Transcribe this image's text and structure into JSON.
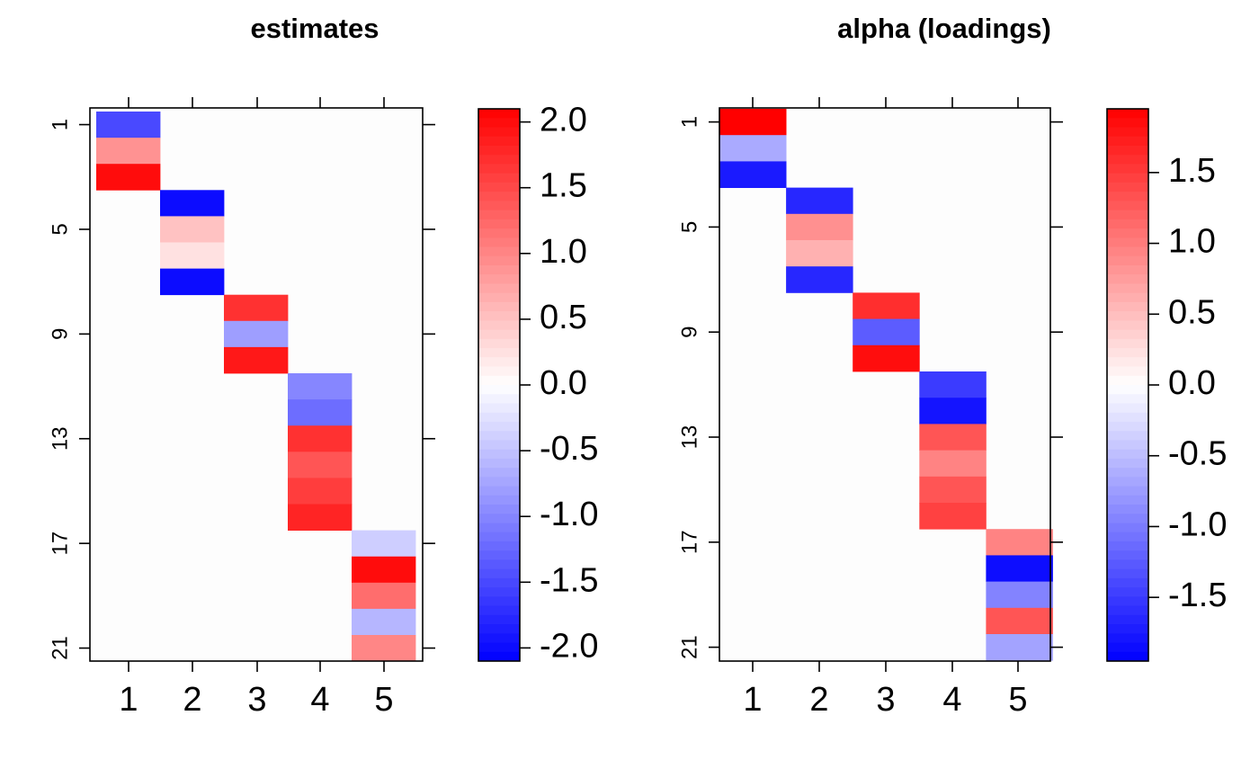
{
  "chart_data": [
    {
      "type": "heatmap",
      "title": "estimates",
      "x_tick_labels": [
        "1",
        "2",
        "3",
        "4",
        "5"
      ],
      "y_tick_labels": [
        "1",
        "5",
        "9",
        "13",
        "17",
        "21"
      ],
      "rows": 21,
      "cols": 5,
      "cells": [
        {
          "row": 1,
          "col": 1,
          "value": -1.5
        },
        {
          "row": 2,
          "col": 1,
          "value": 0.9
        },
        {
          "row": 3,
          "col": 1,
          "value": 2.0
        },
        {
          "row": 4,
          "col": 2,
          "value": -2.0
        },
        {
          "row": 5,
          "col": 2,
          "value": 0.5
        },
        {
          "row": 6,
          "col": 2,
          "value": 0.25
        },
        {
          "row": 7,
          "col": 2,
          "value": -2.0
        },
        {
          "row": 8,
          "col": 3,
          "value": 1.7
        },
        {
          "row": 9,
          "col": 3,
          "value": -0.8
        },
        {
          "row": 10,
          "col": 3,
          "value": 1.9
        },
        {
          "row": 11,
          "col": 4,
          "value": -1.0
        },
        {
          "row": 12,
          "col": 4,
          "value": -1.2
        },
        {
          "row": 13,
          "col": 4,
          "value": 1.7
        },
        {
          "row": 14,
          "col": 4,
          "value": 1.4
        },
        {
          "row": 15,
          "col": 4,
          "value": 1.6
        },
        {
          "row": 16,
          "col": 4,
          "value": 1.8
        },
        {
          "row": 17,
          "col": 5,
          "value": -0.4
        },
        {
          "row": 18,
          "col": 5,
          "value": 2.0
        },
        {
          "row": 19,
          "col": 5,
          "value": 1.2
        },
        {
          "row": 20,
          "col": 5,
          "value": -0.6
        },
        {
          "row": 21,
          "col": 5,
          "value": 1.0
        }
      ],
      "colorbar": {
        "min": -2.1,
        "max": 2.1,
        "ticks": [
          2.0,
          1.5,
          1.0,
          0.5,
          0.0,
          -0.5,
          -1.0,
          -1.5,
          -2.0
        ],
        "tick_labels": [
          "2.0",
          "1.5",
          "1.0",
          "0.5",
          "0.0",
          "-0.5",
          "-1.0",
          "-1.5",
          "-2.0"
        ]
      },
      "colors": {
        "low": "#0000ff",
        "mid": "#ffffff",
        "high": "#ff0000",
        "background": "#fdfdfd"
      }
    },
    {
      "type": "heatmap",
      "title": "alpha (loadings)",
      "x_tick_labels": [
        "1",
        "2",
        "3",
        "4",
        "5"
      ],
      "y_tick_labels": [
        "1",
        "5",
        "9",
        "13",
        "17",
        "21"
      ],
      "rows": 21,
      "cols": 5,
      "cells": [
        {
          "row": 1,
          "col": 1,
          "value": 1.95
        },
        {
          "row": 2,
          "col": 1,
          "value": -0.65
        },
        {
          "row": 3,
          "col": 1,
          "value": -1.75
        },
        {
          "row": 4,
          "col": 2,
          "value": -1.65
        },
        {
          "row": 5,
          "col": 2,
          "value": 0.85
        },
        {
          "row": 6,
          "col": 2,
          "value": 0.6
        },
        {
          "row": 7,
          "col": 2,
          "value": -1.65
        },
        {
          "row": 8,
          "col": 3,
          "value": 1.6
        },
        {
          "row": 9,
          "col": 3,
          "value": -1.25
        },
        {
          "row": 10,
          "col": 3,
          "value": 1.85
        },
        {
          "row": 11,
          "col": 4,
          "value": -1.5
        },
        {
          "row": 12,
          "col": 4,
          "value": -1.8
        },
        {
          "row": 13,
          "col": 4,
          "value": 1.3
        },
        {
          "row": 14,
          "col": 4,
          "value": 0.95
        },
        {
          "row": 15,
          "col": 4,
          "value": 1.3
        },
        {
          "row": 16,
          "col": 4,
          "value": 1.45
        },
        {
          "row": 17,
          "col": 5,
          "value": 0.95
        },
        {
          "row": 18,
          "col": 5,
          "value": -1.85
        },
        {
          "row": 19,
          "col": 5,
          "value": -0.95
        },
        {
          "row": 20,
          "col": 5,
          "value": 1.3
        },
        {
          "row": 21,
          "col": 5,
          "value": -0.7
        }
      ],
      "colorbar": {
        "min": -1.95,
        "max": 1.95,
        "ticks": [
          1.5,
          1.0,
          0.5,
          0.0,
          -0.5,
          -1.0,
          -1.5
        ],
        "tick_labels": [
          "1.5",
          "1.0",
          "0.5",
          "0.0",
          "-0.5",
          "-1.0",
          "-1.5"
        ]
      },
      "colors": {
        "low": "#0000ff",
        "mid": "#ffffff",
        "high": "#ff0000",
        "background": "#fdfdfd"
      }
    }
  ]
}
